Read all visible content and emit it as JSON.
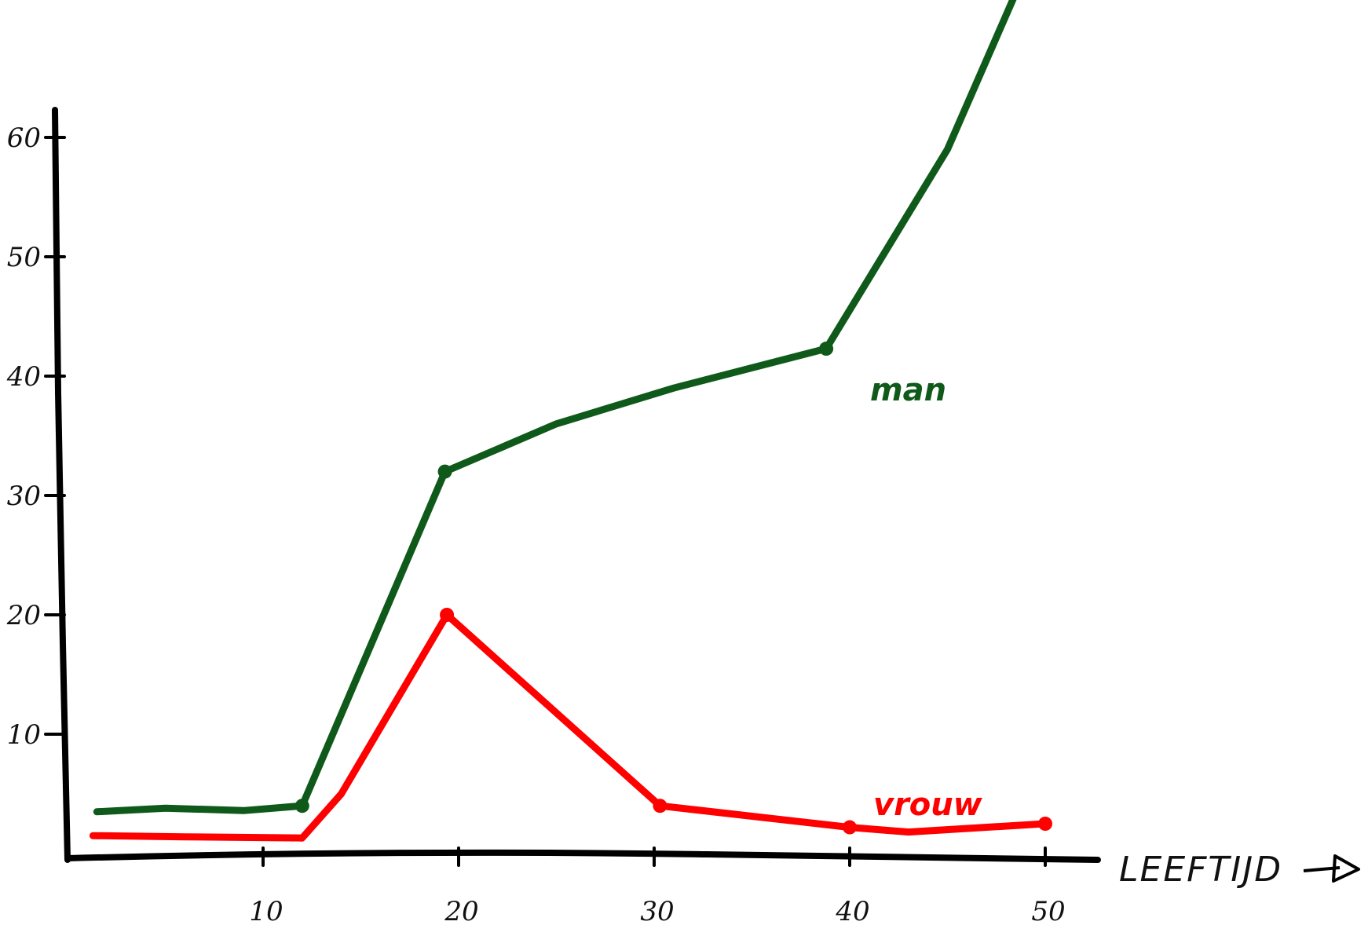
{
  "chart_data": {
    "type": "line",
    "title": "",
    "xlabel": "LEEFTIJD",
    "ylabel": "",
    "xlim": [
      0,
      57
    ],
    "ylim": [
      0,
      72
    ],
    "x_ticks": [
      10,
      20,
      30,
      40,
      50
    ],
    "x_tick_labels": [
      "10",
      "20",
      "30",
      "40",
      "50"
    ],
    "y_ticks": [
      10,
      20,
      30,
      40,
      50,
      60
    ],
    "y_tick_labels": [
      "10",
      "20",
      "30",
      "40",
      "50",
      "60"
    ],
    "grid": false,
    "legend": "inline labels",
    "series": [
      {
        "name": "man",
        "color": "#0f5a1a",
        "x": [
          1.5,
          5,
          9,
          12,
          19.3,
          25,
          31,
          38.8,
          45,
          49.8,
          51.5
        ],
        "y": [
          3.5,
          3.8,
          3.6,
          4,
          32,
          36,
          39,
          42.3,
          59,
          77,
          80
        ],
        "markers_at": [
          3,
          4,
          7,
          9
        ]
      },
      {
        "name": "vrouw",
        "color": "#ff0000",
        "x": [
          1.3,
          6,
          12,
          14,
          19.4,
          30.3,
          40,
          43,
          50
        ],
        "y": [
          1.5,
          1.4,
          1.3,
          5,
          20,
          4,
          2.2,
          1.8,
          2.5
        ],
        "markers_at": [
          4,
          5,
          6,
          8
        ]
      }
    ]
  }
}
